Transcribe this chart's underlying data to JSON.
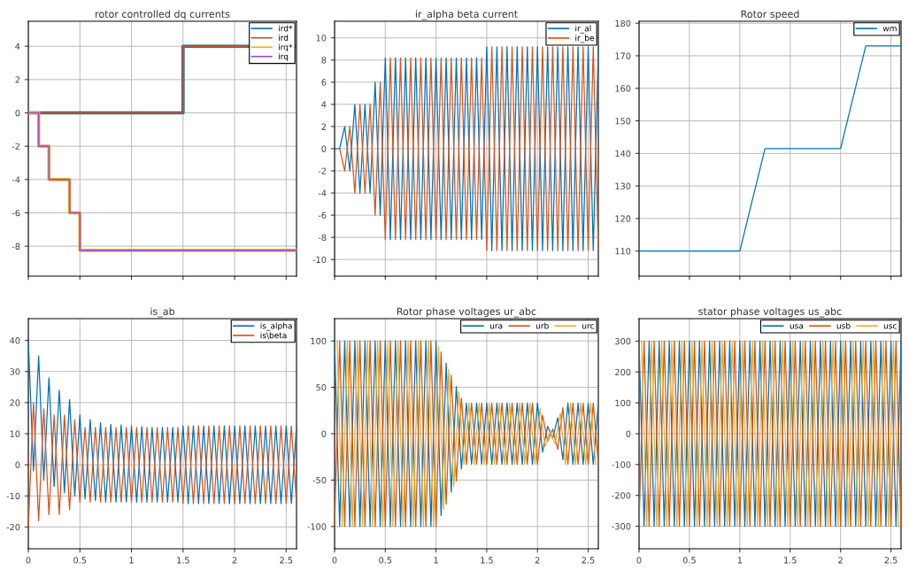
{
  "chart_data": [
    {
      "type": "step",
      "title": "rotor controlled dq currents",
      "xlim": [
        0,
        2.6
      ],
      "xticks": [
        0,
        0.5,
        1,
        1.5,
        2,
        2.5
      ],
      "ylim": [
        -9.8,
        5.5
      ],
      "yticks": [
        -8,
        -6,
        -4,
        -2,
        0,
        2,
        4
      ],
      "grid": true,
      "legend": "top right",
      "tick_labels": "y",
      "series": [
        {
          "name": "ird*",
          "color": "#0072bd",
          "x": [
            0,
            1.5,
            2.6
          ],
          "values": [
            0,
            4,
            4
          ]
        },
        {
          "name": "ird",
          "color": "#d95319",
          "x": [
            0,
            1.5,
            2.6
          ],
          "values": [
            0,
            4,
            4
          ]
        },
        {
          "name": "irq*",
          "color": "#edb120",
          "x": [
            0,
            0.1,
            0.2,
            0.4,
            0.5,
            2.6
          ],
          "values": [
            0,
            -2,
            -4,
            -6,
            -8.25,
            -8.25
          ]
        },
        {
          "name": "irq",
          "color": "#a050d8",
          "x": [
            0,
            0.1,
            0.2,
            0.4,
            0.5,
            2.6
          ],
          "values": [
            0,
            -2,
            -4,
            -6,
            -8.25,
            -8.25
          ]
        }
      ]
    },
    {
      "type": "line",
      "title": "ir_alpha beta current",
      "xlim": [
        0,
        2.6
      ],
      "xticks": [
        0,
        0.5,
        1,
        1.5,
        2,
        2.5
      ],
      "ylim": [
        -11.5,
        11.5
      ],
      "yticks": [
        -10,
        -8,
        -6,
        -4,
        -2,
        0,
        2,
        4,
        6,
        8,
        10
      ],
      "grid": true,
      "legend": "top right",
      "tick_labels": "y",
      "x": [
        0,
        0.05,
        0.1,
        0.15,
        0.2,
        0.25,
        0.3,
        0.35,
        0.4,
        0.45,
        0.5,
        0.55,
        0.6,
        0.65,
        0.7,
        0.75,
        0.8,
        0.85,
        0.9,
        0.95,
        1,
        1.05,
        1.1,
        1.15,
        1.2,
        1.25,
        1.3,
        1.35,
        1.4,
        1.45,
        1.5,
        1.55,
        1.6,
        1.65,
        1.7,
        1.75,
        1.8,
        1.85,
        1.9,
        1.95,
        2,
        2.05,
        2.1,
        2.15,
        2.2,
        2.25,
        2.3,
        2.35,
        2.4,
        2.45,
        2.5,
        2.55,
        2.6
      ],
      "series": [
        {
          "name": "ir_al",
          "color": "#0072bd",
          "values": [
            0,
            0,
            2,
            -2,
            4,
            -4,
            4,
            -4,
            6,
            -6,
            8.2,
            -8.2,
            8.2,
            -8.2,
            8.2,
            -8.2,
            8.2,
            -8.2,
            8.2,
            -8.2,
            8.2,
            -8.2,
            8.2,
            -8.2,
            8.2,
            -8.2,
            8.2,
            -8.2,
            8.2,
            -8.2,
            9.2,
            -9.2,
            9.2,
            -9.2,
            9.2,
            -9.2,
            9.2,
            -9.2,
            9.2,
            -9.2,
            9.2,
            -9.2,
            9.2,
            -9.2,
            9.2,
            -9.2,
            9.2,
            -9.2,
            9.2,
            -9.2,
            9.2,
            -9.2,
            9.2
          ]
        },
        {
          "name": "ir_be",
          "color": "#d95319",
          "values": [
            null,
            0,
            -2,
            2,
            -4,
            4,
            -4,
            4,
            -6,
            6,
            -8.2,
            8.2,
            -8.2,
            8.2,
            -8.2,
            8.2,
            -8.2,
            8.2,
            -8.2,
            8.2,
            -8.2,
            8.2,
            -8.2,
            8.2,
            -8.2,
            8.2,
            -8.2,
            8.2,
            -8.2,
            8.2,
            -9.2,
            9.2,
            -9.2,
            9.2,
            -9.2,
            9.2,
            -9.2,
            9.2,
            -9.2,
            9.2,
            -9.2,
            9.2,
            -9.2,
            9.2,
            -9.2,
            9.2,
            -9.2,
            9.2,
            -9.2,
            9.2,
            -9.2,
            9.2,
            -9.2
          ]
        }
      ]
    },
    {
      "type": "line",
      "title": "Rotor speed",
      "xlim": [
        0,
        2.6
      ],
      "xticks": [
        0,
        0.5,
        1,
        1.5,
        2,
        2.5
      ],
      "ylim": [
        102.3,
        180.6
      ],
      "yticks": [
        110,
        120,
        130,
        140,
        150,
        160,
        170,
        180
      ],
      "grid": true,
      "legend": "top right",
      "tick_labels": "y",
      "series": [
        {
          "name": "wm",
          "color": "#0072bd",
          "x": [
            0,
            1,
            1.25,
            2,
            2.25,
            2.6
          ],
          "values": [
            110,
            110,
            141.5,
            141.5,
            173,
            173
          ]
        }
      ]
    },
    {
      "type": "line",
      "title": "is_ab",
      "xlim": [
        0,
        2.6
      ],
      "xticks": [
        0,
        0.5,
        1,
        1.5,
        2,
        2.5
      ],
      "ylim": [
        -27,
        47
      ],
      "yticks": [
        -20,
        -10,
        0,
        10,
        20,
        30,
        40
      ],
      "grid": true,
      "legend": "top right",
      "x": [
        0,
        0.05,
        0.1,
        0.15,
        0.2,
        0.25,
        0.3,
        0.35,
        0.4,
        0.45,
        0.5,
        0.55,
        0.6,
        0.65,
        0.7,
        0.75,
        0.8,
        0.85,
        0.9,
        0.95,
        1,
        1.05,
        1.1,
        1.15,
        1.2,
        1.25,
        1.3,
        1.35,
        1.4,
        1.45,
        1.5,
        1.55,
        1.6,
        1.65,
        1.7,
        1.75,
        1.8,
        1.85,
        1.9,
        1.95,
        2,
        2.05,
        2.1,
        2.15,
        2.2,
        2.25,
        2.3,
        2.35,
        2.4,
        2.45,
        2.5,
        2.55,
        2.6
      ],
      "series": [
        {
          "name": "is_alpha",
          "color": "#0072bd",
          "values": [
            40,
            -2,
            35,
            -5,
            28,
            -7,
            24,
            -9,
            21,
            -10,
            16,
            -11,
            14.5,
            -11.5,
            13.5,
            -12,
            13,
            -12,
            12.8,
            -12,
            12.5,
            -12,
            12.3,
            -12,
            12,
            -12,
            12,
            -12,
            12,
            -12,
            12.5,
            -12.5,
            12.5,
            -12.5,
            12.5,
            -12.5,
            12.5,
            -12.5,
            12.5,
            -12.5,
            12.5,
            -12.5,
            12.5,
            -12.5,
            12.5,
            -12.5,
            12.5,
            -12.5,
            12.5,
            -12.5,
            12.5,
            -12.5,
            12.5
          ]
        },
        {
          "name": "is\\beta",
          "color": "#d95319",
          "values": [
            -20,
            20,
            -18,
            18,
            -16,
            16,
            -16,
            16,
            -14.5,
            14.5,
            -12,
            12,
            -12,
            12,
            -12,
            12,
            -12,
            12,
            -12,
            12,
            -12,
            12,
            -12,
            12,
            -12,
            12,
            -12,
            12,
            -12,
            12,
            -12.5,
            12.5,
            -12.5,
            12.5,
            -12.5,
            12.5,
            -12.5,
            12.5,
            -12.5,
            12.5,
            -12.5,
            12.5,
            -12.5,
            12.5,
            -12.5,
            12.5,
            -12.5,
            12.5,
            -12.5,
            12.5,
            -12.5,
            12.5,
            -12.5
          ]
        }
      ]
    },
    {
      "type": "line",
      "title": "Rotor phase voltages ur_abc",
      "xlim": [
        0,
        2.6
      ],
      "xticks": [
        0,
        0.5,
        1,
        1.5,
        2,
        2.5
      ],
      "ylim": [
        -124,
        124
      ],
      "yticks": [
        -100,
        -50,
        0,
        50,
        100
      ],
      "grid": true,
      "legend": "top right",
      "x": [
        0,
        0.05,
        0.1,
        0.15,
        0.2,
        0.25,
        0.3,
        0.35,
        0.4,
        0.45,
        0.5,
        0.55,
        0.6,
        0.65,
        0.7,
        0.75,
        0.8,
        0.85,
        0.9,
        0.95,
        1,
        1.05,
        1.1,
        1.15,
        1.2,
        1.25,
        1.3,
        1.35,
        1.4,
        1.45,
        1.5,
        1.55,
        1.6,
        1.65,
        1.7,
        1.75,
        1.8,
        1.85,
        1.9,
        1.95,
        2,
        2.05,
        2.1,
        2.15,
        2.2,
        2.25,
        2.3,
        2.35,
        2.4,
        2.45,
        2.5,
        2.55,
        2.6
      ],
      "series": [
        {
          "name": "ura",
          "color": "#0072bd",
          "values": [
            100,
            -100,
            100,
            -100,
            100,
            -100,
            100,
            -100,
            100,
            -100,
            100,
            -100,
            100,
            -100,
            100,
            -100,
            100,
            -100,
            100,
            -100,
            100,
            -88,
            76,
            -63,
            51,
            -38,
            33,
            -33,
            33,
            -33,
            33,
            -33,
            33,
            -33,
            33,
            -33,
            33,
            -33,
            33,
            -33,
            33,
            -20,
            8,
            -5,
            17,
            -28,
            33,
            -33,
            33,
            -33,
            33,
            -33,
            33
          ]
        },
        {
          "name": "urb",
          "color": "#d95319",
          "values": [
            -100,
            100,
            -100,
            100,
            -100,
            100,
            -100,
            100,
            -100,
            100,
            -100,
            100,
            -100,
            100,
            -100,
            100,
            -100,
            100,
            -100,
            100,
            -100,
            88,
            -76,
            63,
            -51,
            38,
            -33,
            33,
            -33,
            33,
            -33,
            33,
            -33,
            33,
            -33,
            33,
            -33,
            33,
            -33,
            33,
            -33,
            20,
            -8,
            5,
            -17,
            28,
            -33,
            33,
            -33,
            33,
            -33,
            33,
            -33
          ]
        },
        {
          "name": "urc",
          "color": "#edb120",
          "x": [
            0.025,
            0.075,
            0.125,
            0.175,
            0.225,
            0.275,
            0.325,
            0.375,
            0.425,
            0.475,
            0.525,
            0.575,
            0.625,
            0.675,
            0.725,
            0.775,
            0.825,
            0.875,
            0.925,
            0.975,
            1.025,
            1.075,
            1.125,
            1.175,
            1.225,
            1.275,
            1.325,
            1.375,
            1.425,
            1.475,
            1.525,
            1.575,
            1.625,
            1.675,
            1.725,
            1.775,
            1.825,
            1.875,
            1.925,
            1.975,
            2.025,
            2.075,
            2.125,
            2.175,
            2.225,
            2.275,
            2.325,
            2.375,
            2.425,
            2.475,
            2.525,
            2.575
          ],
          "values": [
            100,
            -100,
            100,
            -100,
            100,
            -100,
            100,
            -100,
            100,
            -100,
            100,
            -100,
            100,
            -100,
            100,
            -100,
            100,
            -100,
            100,
            -100,
            94,
            -82,
            69,
            -57,
            45,
            -33,
            33,
            -33,
            33,
            -33,
            33,
            -33,
            33,
            -33,
            33,
            -33,
            33,
            -33,
            33,
            -33,
            27,
            -14,
            2,
            -11,
            22,
            -33,
            33,
            -33,
            33,
            -33,
            33,
            -33
          ]
        }
      ]
    },
    {
      "type": "line",
      "title": "stator phase voltages us_abc",
      "xlim": [
        0,
        2.6
      ],
      "xticks": [
        0,
        0.5,
        1,
        1.5,
        2,
        2.5
      ],
      "ylim": [
        -373,
        373
      ],
      "yticks": [
        -300,
        -200,
        -100,
        0,
        100,
        200,
        300
      ],
      "grid": true,
      "legend": "top right",
      "x": [
        0,
        0.05,
        0.1,
        0.15,
        0.2,
        0.25,
        0.3,
        0.35,
        0.4,
        0.45,
        0.5,
        0.55,
        0.6,
        0.65,
        0.7,
        0.75,
        0.8,
        0.85,
        0.9,
        0.95,
        1,
        1.05,
        1.1,
        1.15,
        1.2,
        1.25,
        1.3,
        1.35,
        1.4,
        1.45,
        1.5,
        1.55,
        1.6,
        1.65,
        1.7,
        1.75,
        1.8,
        1.85,
        1.9,
        1.95,
        2,
        2.05,
        2.1,
        2.15,
        2.2,
        2.25,
        2.3,
        2.35,
        2.4,
        2.45,
        2.5,
        2.55,
        2.6
      ],
      "series": [
        {
          "name": "usa",
          "color": "#0072bd",
          "values": [
            300,
            -300,
            300,
            -300,
            300,
            -300,
            300,
            -300,
            300,
            -300,
            300,
            -300,
            300,
            -300,
            300,
            -300,
            300,
            -300,
            300,
            -300,
            300,
            -300,
            300,
            -300,
            300,
            -300,
            300,
            -300,
            300,
            -300,
            300,
            -300,
            300,
            -300,
            300,
            -300,
            300,
            -300,
            300,
            -300,
            300,
            -300,
            300,
            -300,
            300,
            -300,
            300,
            -300,
            300,
            -300,
            300,
            -300,
            300
          ]
        },
        {
          "name": "usb",
          "color": "#d95319",
          "values": [
            -300,
            300,
            -300,
            300,
            -300,
            300,
            -300,
            300,
            -300,
            300,
            -300,
            300,
            -300,
            300,
            -300,
            300,
            -300,
            300,
            -300,
            300,
            -300,
            300,
            -300,
            300,
            -300,
            300,
            -300,
            300,
            -300,
            300,
            -300,
            300,
            -300,
            300,
            -300,
            300,
            -300,
            300,
            -300,
            300,
            -300,
            300,
            -300,
            300,
            -300,
            300,
            -300,
            300,
            -300,
            300,
            -300,
            300,
            -300
          ]
        },
        {
          "name": "usc",
          "color": "#edb120",
          "x": [
            0.025,
            0.075,
            0.125,
            0.175,
            0.225,
            0.275,
            0.325,
            0.375,
            0.425,
            0.475,
            0.525,
            0.575,
            0.625,
            0.675,
            0.725,
            0.775,
            0.825,
            0.875,
            0.925,
            0.975,
            1.025,
            1.075,
            1.125,
            1.175,
            1.225,
            1.275,
            1.325,
            1.375,
            1.425,
            1.475,
            1.525,
            1.575,
            1.625,
            1.675,
            1.725,
            1.775,
            1.825,
            1.875,
            1.925,
            1.975,
            2.025,
            2.075,
            2.125,
            2.175,
            2.225,
            2.275,
            2.325,
            2.375,
            2.425,
            2.475,
            2.525,
            2.575
          ],
          "values": [
            300,
            -300,
            300,
            -300,
            300,
            -300,
            300,
            -300,
            300,
            -300,
            300,
            -300,
            300,
            -300,
            300,
            -300,
            300,
            -300,
            300,
            -300,
            300,
            -300,
            300,
            -300,
            300,
            -300,
            300,
            -300,
            300,
            -300,
            300,
            -300,
            300,
            -300,
            300,
            -300,
            300,
            -300,
            300,
            -300,
            300,
            -300,
            300,
            -300,
            300,
            -300,
            300,
            -300,
            300,
            -300,
            300,
            -300
          ]
        }
      ]
    }
  ]
}
